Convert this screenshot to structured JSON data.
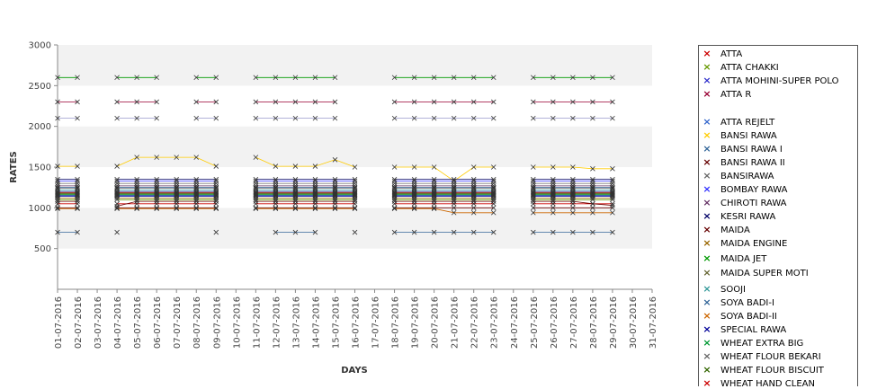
{
  "chart_data": {
    "type": "line",
    "title": "",
    "xlabel": "DAYS",
    "ylabel": "RATES",
    "ylim": [
      0,
      3000
    ],
    "yticks": [
      500,
      1000,
      1500,
      2000,
      2500,
      3000
    ],
    "grid": "horizontal alternating bands",
    "legend_position": "right",
    "x": [
      "01-07-2016",
      "02-07-2016",
      "03-07-2016",
      "04-07-2016",
      "05-07-2016",
      "06-07-2016",
      "07-07-2016",
      "08-07-2016",
      "09-07-2016",
      "10-07-2016",
      "11-07-2016",
      "12-07-2016",
      "13-07-2016",
      "14-07-2016",
      "15-07-2016",
      "16-07-2016",
      "17-07-2016",
      "18-07-2016",
      "19-07-2016",
      "20-07-2016",
      "21-07-2016",
      "22-07-2016",
      "23-07-2016",
      "24-07-2016",
      "25-07-2016",
      "26-07-2016",
      "27-07-2016",
      "28-07-2016",
      "29-07-2016",
      "30-07-2016",
      "31-07-2016"
    ],
    "series": [
      {
        "name": "ATTA",
        "color": "#cc0000",
        "values": [
          1050,
          1050,
          null,
          1050,
          1050,
          1050,
          1050,
          1050,
          1050,
          null,
          1050,
          1050,
          1050,
          1050,
          1050,
          1050,
          null,
          1050,
          1050,
          1050,
          1050,
          1050,
          1050,
          null,
          1050,
          1050,
          1050,
          1050,
          1050,
          null,
          null
        ]
      },
      {
        "name": "ATTA CHAKKI",
        "color": "#669900",
        "values": [
          1100,
          1100,
          null,
          1100,
          1100,
          1100,
          1100,
          1100,
          1100,
          null,
          1100,
          1100,
          1100,
          1100,
          1100,
          1100,
          null,
          1100,
          1100,
          1100,
          1100,
          1100,
          1100,
          null,
          1100,
          1100,
          1100,
          1100,
          1100,
          null,
          null
        ]
      },
      {
        "name": "ATTA MOHINI-SUPER POLO",
        "color": "#3333cc",
        "values": [
          1150,
          1150,
          null,
          1150,
          1150,
          1150,
          1150,
          1150,
          1150,
          null,
          1150,
          1150,
          1150,
          1150,
          1150,
          1150,
          null,
          1150,
          1150,
          1150,
          1150,
          1150,
          1150,
          null,
          1150,
          1150,
          1150,
          1150,
          1150,
          null,
          null
        ]
      },
      {
        "name": "ATTA R",
        "color": "#990033",
        "values": [
          2300,
          2300,
          null,
          2300,
          2300,
          2300,
          null,
          2300,
          2300,
          null,
          2300,
          2300,
          2300,
          2300,
          2300,
          null,
          null,
          2300,
          2300,
          2300,
          2300,
          2300,
          2300,
          null,
          2300,
          2300,
          2300,
          2300,
          2300,
          null,
          null
        ]
      },
      {
        "name": "ATTA REJELT",
        "color": "#3366cc",
        "values": [
          1200,
          1200,
          null,
          1200,
          1200,
          1200,
          1200,
          1200,
          1200,
          null,
          1200,
          1200,
          1200,
          1200,
          1200,
          1200,
          null,
          1200,
          1200,
          1200,
          1200,
          1200,
          1200,
          null,
          1200,
          1200,
          1200,
          1200,
          1200,
          null,
          null
        ]
      },
      {
        "name": "BANSI RAWA",
        "color": "#ffcc00",
        "values": [
          1510,
          1510,
          null,
          1510,
          1620,
          1620,
          1620,
          1620,
          1510,
          null,
          1620,
          1510,
          1510,
          1510,
          1590,
          1500,
          null,
          1500,
          1500,
          1500,
          1330,
          1500,
          1500,
          null,
          1500,
          1500,
          1500,
          1480,
          1480,
          null,
          null
        ]
      },
      {
        "name": "BANSI RAWA I",
        "color": "#336699",
        "values": [
          1250,
          1250,
          null,
          1250,
          1250,
          1250,
          1250,
          1250,
          1250,
          null,
          1250,
          1250,
          1250,
          1250,
          1250,
          1250,
          null,
          1250,
          1250,
          1250,
          1250,
          1250,
          1250,
          null,
          1250,
          1250,
          1250,
          1250,
          1250,
          null,
          null
        ]
      },
      {
        "name": "BANSI RAWA II",
        "color": "#660000",
        "values": [
          1000,
          1000,
          null,
          1000,
          1000,
          1000,
          1000,
          1000,
          1000,
          null,
          1000,
          1000,
          1000,
          1000,
          1000,
          1000,
          null,
          1000,
          1000,
          1000,
          1000,
          1000,
          1000,
          null,
          1000,
          1000,
          1000,
          1000,
          1000,
          null,
          null
        ]
      },
      {
        "name": "BANSIRAWA",
        "color": "#666666",
        "values": [
          1300,
          1300,
          null,
          1300,
          1300,
          1300,
          1300,
          1300,
          1300,
          null,
          1300,
          1300,
          1300,
          1300,
          1300,
          1300,
          null,
          1300,
          1300,
          1300,
          1300,
          1300,
          1300,
          null,
          1300,
          1300,
          1300,
          1300,
          1300,
          null,
          null
        ]
      },
      {
        "name": "BOMBAY RAWA",
        "color": "#3333ff",
        "values": [
          1330,
          1330,
          null,
          1330,
          1330,
          1330,
          1330,
          1330,
          1330,
          null,
          1330,
          1330,
          1330,
          1330,
          1330,
          1330,
          null,
          1330,
          1330,
          1330,
          1330,
          1330,
          1330,
          null,
          1330,
          1330,
          1330,
          1330,
          1330,
          null,
          null
        ]
      },
      {
        "name": "CHIROTI RAWA",
        "color": "#663366",
        "values": [
          1270,
          1270,
          null,
          1270,
          1270,
          1270,
          1270,
          1270,
          1270,
          null,
          1270,
          1270,
          1270,
          1270,
          1270,
          1270,
          null,
          1270,
          1270,
          1270,
          1270,
          1270,
          1270,
          null,
          1270,
          1270,
          1270,
          1270,
          1270,
          null,
          null
        ]
      },
      {
        "name": "KESRI RAWA",
        "color": "#000066",
        "values": [
          1350,
          1350,
          null,
          1350,
          1350,
          1350,
          1350,
          1350,
          1350,
          null,
          1350,
          1350,
          1350,
          1350,
          1350,
          1350,
          null,
          1350,
          1350,
          1350,
          1350,
          1350,
          1350,
          null,
          1350,
          1350,
          1350,
          1350,
          1350,
          null,
          null
        ]
      },
      {
        "name": "MAIDA",
        "color": "#660000",
        "values": [
          1080,
          1080,
          null,
          1020,
          1080,
          1080,
          1080,
          1080,
          1080,
          null,
          1080,
          1080,
          1080,
          1080,
          1080,
          1080,
          null,
          1080,
          1080,
          1080,
          1080,
          1080,
          1080,
          null,
          1080,
          1080,
          1080,
          1050,
          1030,
          null,
          null
        ]
      },
      {
        "name": "MAIDA ENGINE",
        "color": "#996600",
        "values": [
          1120,
          1120,
          null,
          1120,
          1120,
          1120,
          1120,
          1120,
          1120,
          null,
          1120,
          1120,
          1120,
          1120,
          1120,
          1120,
          null,
          1120,
          1120,
          1120,
          1120,
          1120,
          1120,
          null,
          1120,
          1120,
          1120,
          1120,
          1120,
          null,
          null
        ]
      },
      {
        "name": "MAIDA JET",
        "color": "#009900",
        "values": [
          2600,
          2600,
          null,
          2600,
          2600,
          2600,
          null,
          2600,
          2600,
          null,
          2600,
          2600,
          2600,
          2600,
          2600,
          null,
          null,
          2600,
          2600,
          2600,
          2600,
          2600,
          2600,
          null,
          2600,
          2600,
          2600,
          2600,
          2600,
          null,
          null
        ]
      },
      {
        "name": "MAIDA SUPER MOTI",
        "color": "#666633",
        "values": [
          1180,
          1180,
          null,
          1180,
          1180,
          1180,
          1180,
          1180,
          1180,
          null,
          1180,
          1180,
          1180,
          1180,
          1180,
          1180,
          null,
          1180,
          1180,
          1180,
          1180,
          1180,
          1180,
          null,
          1180,
          1180,
          1180,
          1180,
          1180,
          null,
          null
        ]
      },
      {
        "name": "SOOJI",
        "color": "#339999",
        "values": [
          1220,
          1220,
          null,
          1220,
          1220,
          1220,
          1220,
          1220,
          1220,
          null,
          1220,
          1220,
          1220,
          1220,
          1220,
          1220,
          null,
          1220,
          1220,
          1220,
          1220,
          1220,
          1220,
          null,
          1220,
          1220,
          1220,
          1220,
          1220,
          null,
          null
        ]
      },
      {
        "name": "SOYA BADI-I",
        "color": "#336699",
        "values": [
          700,
          700,
          null,
          700,
          null,
          null,
          null,
          null,
          700,
          null,
          null,
          700,
          700,
          700,
          null,
          700,
          null,
          700,
          700,
          700,
          700,
          700,
          700,
          null,
          700,
          700,
          700,
          700,
          700,
          null,
          null
        ]
      },
      {
        "name": "SOYA BADI-II",
        "color": "#cc6600",
        "values": [
          990,
          990,
          null,
          990,
          990,
          990,
          990,
          990,
          990,
          null,
          990,
          990,
          990,
          990,
          990,
          990,
          null,
          990,
          990,
          990,
          940,
          940,
          940,
          null,
          940,
          940,
          940,
          940,
          940,
          null,
          null
        ]
      },
      {
        "name": "SPECIAL RAWA",
        "color": "#000099",
        "values": [
          1140,
          1140,
          null,
          1140,
          1140,
          1140,
          1140,
          1140,
          1140,
          null,
          1140,
          1140,
          1140,
          1140,
          1140,
          1140,
          null,
          1140,
          1140,
          1140,
          1140,
          1140,
          1140,
          null,
          1140,
          1140,
          1140,
          1140,
          1140,
          null,
          null
        ]
      },
      {
        "name": "WHEAT EXTRA BIG",
        "color": "#009933",
        "values": [
          1160,
          1160,
          null,
          1160,
          1160,
          1160,
          1160,
          1160,
          1160,
          null,
          1160,
          1160,
          1160,
          1160,
          1160,
          1160,
          null,
          1160,
          1160,
          1160,
          1160,
          1160,
          1160,
          null,
          1160,
          1160,
          1160,
          1160,
          1160,
          null,
          null
        ]
      },
      {
        "name": "WHEAT FLOUR BEKARI",
        "color": "#666666",
        "values": [
          1240,
          1240,
          null,
          1240,
          1240,
          1240,
          1240,
          1240,
          1240,
          null,
          1240,
          1240,
          1240,
          1240,
          1240,
          1240,
          null,
          1240,
          1240,
          1240,
          1240,
          1240,
          1240,
          null,
          1240,
          1240,
          1240,
          1240,
          1240,
          null,
          null
        ]
      },
      {
        "name": "WHEAT FLOUR BISCUIT",
        "color": "#336600",
        "values": [
          1170,
          1170,
          null,
          1170,
          1170,
          1170,
          1170,
          1170,
          1170,
          null,
          1170,
          1170,
          1170,
          1170,
          1170,
          1170,
          null,
          1170,
          1170,
          1170,
          1170,
          1170,
          1170,
          null,
          1170,
          1170,
          1170,
          1170,
          1170,
          null,
          null
        ]
      },
      {
        "name": "WHEAT HAND CLEAN",
        "color": "#cc0000",
        "values": [
          1190,
          1190,
          null,
          1190,
          1190,
          1190,
          1190,
          1190,
          1190,
          null,
          1190,
          1190,
          1190,
          1190,
          1190,
          1190,
          null,
          1190,
          1190,
          1190,
          1190,
          1190,
          1190,
          null,
          1190,
          1190,
          1190,
          1190,
          1190,
          null,
          null
        ]
      },
      {
        "name": "",
        "color": "#9999cc",
        "values": [
          2100,
          2100,
          null,
          2100,
          2100,
          2100,
          null,
          2100,
          2100,
          null,
          2100,
          2100,
          2100,
          2100,
          2100,
          null,
          null,
          2100,
          2100,
          2100,
          2100,
          2100,
          2100,
          null,
          2100,
          2100,
          2100,
          2100,
          2100,
          null,
          null
        ]
      }
    ]
  }
}
